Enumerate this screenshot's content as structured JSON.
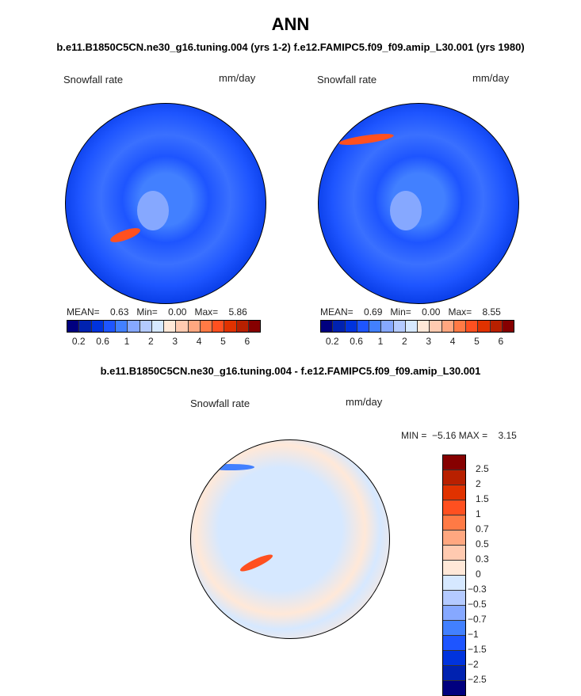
{
  "title": "ANN",
  "subtitle": "b.e11.B1850C5CN.ne30_g16.tuning.004 (yrs 1-2)  f.e12.FAMIPC5.f09_f09.amip_L30.001 (yrs 1980)",
  "diff_title": "b.e11.B1850C5CN.ne30_g16.tuning.004 - f.e12.FAMIPC5.f09_f09.amip_L30.001",
  "variable": "Snowfall rate",
  "units": "mm/day",
  "panels": [
    {
      "mean_label": "MEAN=",
      "mean": "0.63",
      "min_label": "Min=",
      "min": "0.00",
      "max_label": "Max=",
      "max": "5.86"
    },
    {
      "mean_label": "MEAN=",
      "mean": "0.69",
      "min_label": "Min=",
      "min": "0.00",
      "max_label": "Max=",
      "max": "8.55"
    }
  ],
  "diff_stats": {
    "min_label": "MIN =",
    "min": "−5.16",
    "max_label": "MAX =",
    "max": "3.15"
  },
  "colors": [
    "#00007f",
    "#0022b0",
    "#0033dd",
    "#1e55ff",
    "#4280ff",
    "#86a8ff",
    "#b4caff",
    "#d6e8ff",
    "#ffe8d8",
    "#ffcab0",
    "#ffa780",
    "#ff7a45",
    "#ff5020",
    "#e03200",
    "#b82000",
    "#860000"
  ],
  "h_ticks": [
    "0.2",
    "0.6",
    "1",
    "2",
    "3",
    "4",
    "5",
    "6"
  ],
  "v_ticks": [
    "2.5",
    "2",
    "1.5",
    "1",
    "0.7",
    "0.5",
    "0.3",
    "0",
    "−0.3",
    "−0.5",
    "−0.7",
    "−1",
    "−1.5",
    "−2",
    "−2.5"
  ]
}
